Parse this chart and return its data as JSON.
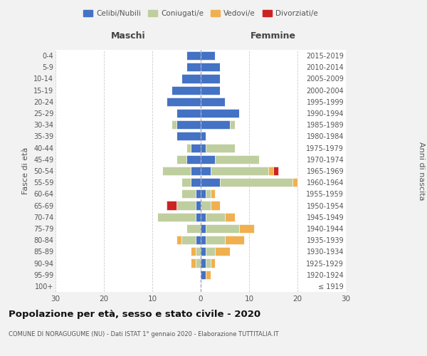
{
  "age_groups": [
    "100+",
    "95-99",
    "90-94",
    "85-89",
    "80-84",
    "75-79",
    "70-74",
    "65-69",
    "60-64",
    "55-59",
    "50-54",
    "45-49",
    "40-44",
    "35-39",
    "30-34",
    "25-29",
    "20-24",
    "15-19",
    "10-14",
    "5-9",
    "0-4"
  ],
  "birth_years": [
    "≤ 1919",
    "1920-1924",
    "1925-1929",
    "1930-1934",
    "1935-1939",
    "1940-1944",
    "1945-1949",
    "1950-1954",
    "1955-1959",
    "1960-1964",
    "1965-1969",
    "1970-1974",
    "1975-1979",
    "1980-1984",
    "1985-1989",
    "1990-1994",
    "1995-1999",
    "2000-2004",
    "2005-2009",
    "2010-2014",
    "2015-2019"
  ],
  "colors": {
    "celibi": "#4472C4",
    "coniugati": "#BFCE9E",
    "vedovi": "#F0B050",
    "divorziati": "#CC2222"
  },
  "maschi": {
    "celibi": [
      0,
      0,
      0,
      0,
      1,
      0,
      1,
      1,
      1,
      2,
      2,
      3,
      2,
      5,
      5,
      5,
      7,
      6,
      4,
      3,
      3
    ],
    "coniugati": [
      0,
      0,
      1,
      1,
      3,
      3,
      8,
      4,
      3,
      2,
      6,
      2,
      1,
      0,
      1,
      0,
      0,
      0,
      0,
      0,
      0
    ],
    "vedovi": [
      0,
      0,
      1,
      1,
      1,
      0,
      0,
      0,
      0,
      0,
      0,
      0,
      0,
      0,
      0,
      0,
      0,
      0,
      0,
      0,
      0
    ],
    "divorziati": [
      0,
      0,
      0,
      0,
      0,
      0,
      0,
      2,
      0,
      0,
      0,
      0,
      0,
      0,
      0,
      0,
      0,
      0,
      0,
      0,
      0
    ]
  },
  "femmine": {
    "celibi": [
      0,
      1,
      1,
      1,
      1,
      1,
      1,
      0,
      1,
      4,
      2,
      3,
      1,
      1,
      6,
      8,
      5,
      4,
      4,
      4,
      3
    ],
    "coniugati": [
      0,
      0,
      1,
      2,
      4,
      7,
      4,
      2,
      1,
      15,
      12,
      9,
      6,
      0,
      1,
      0,
      0,
      0,
      0,
      0,
      0
    ],
    "vedovi": [
      0,
      1,
      1,
      3,
      4,
      3,
      2,
      2,
      1,
      1,
      1,
      0,
      0,
      0,
      0,
      0,
      0,
      0,
      0,
      0,
      0
    ],
    "divorziati": [
      0,
      0,
      0,
      0,
      0,
      0,
      0,
      0,
      0,
      0,
      1,
      0,
      0,
      0,
      0,
      0,
      0,
      0,
      0,
      0,
      0
    ]
  },
  "xlim": 30,
  "title": "Popolazione per età, sesso e stato civile - 2020",
  "subtitle": "COMUNE DI NORAGUGUME (NU) - Dati ISTAT 1° gennaio 2020 - Elaborazione TUTTITALIA.IT",
  "ylabel_left": "Fasce di età",
  "ylabel_right": "Anni di nascita",
  "legend_labels": [
    "Celibi/Nubili",
    "Coniugati/e",
    "Vedovi/e",
    "Divorziati/e"
  ],
  "maschi_label": "Maschi",
  "femmine_label": "Femmine",
  "bg_color": "#F2F2F2",
  "plot_bg_color": "#FFFFFF"
}
